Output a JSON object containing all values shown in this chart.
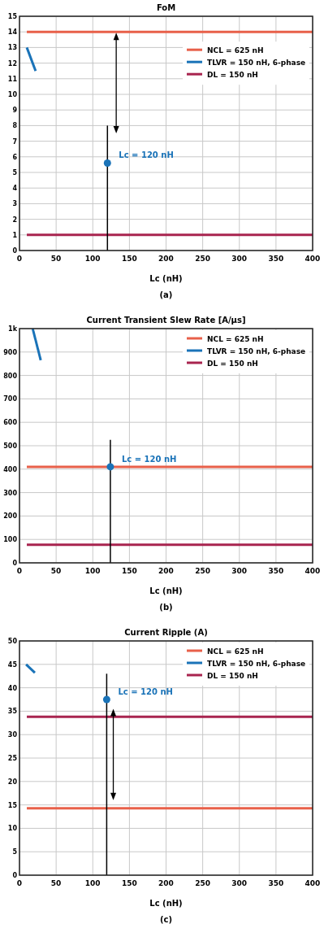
{
  "chart_data": [
    {
      "type": "line",
      "title": "FoM",
      "xlabel": "Lc (nH)",
      "xlim": [
        0,
        400
      ],
      "xticks": [
        0,
        50,
        100,
        150,
        200,
        250,
        300,
        350,
        400
      ],
      "ylim": [
        0,
        15
      ],
      "yticks": [
        0,
        1,
        2,
        3,
        4,
        5,
        6,
        7,
        8,
        9,
        10,
        11,
        12,
        13,
        14,
        15
      ],
      "grid": true,
      "legend": "top right",
      "series": [
        {
          "name": "NCL = 625 nH",
          "color": "#e8604a",
          "x": [
            10,
            400
          ],
          "values": [
            14,
            14
          ]
        },
        {
          "name": "TLVR = 150 nH, 6-phase",
          "color": "#1a73b8",
          "x": [
            10,
            22
          ],
          "values": [
            13,
            11.5
          ]
        },
        {
          "name": "DL = 150 nH",
          "color": "#a8244f",
          "x": [
            10,
            400
          ],
          "values": [
            1,
            1
          ]
        },
        {
          "type": "line",
          "color": "#000000",
          "x": [
            120,
            120
          ],
          "values": [
            0,
            8
          ]
        },
        {
          "type": "scatter",
          "color": "#1a73b8",
          "x": [
            120
          ],
          "values": [
            5.6
          ]
        }
      ],
      "annotations": [
        {
          "text": "Lc = 120 nH",
          "x": 120,
          "y": 5.6
        },
        "(a)"
      ]
    },
    {
      "type": "line",
      "title": "Current Transient Slew Rate [A/μs]",
      "xlabel": "Lc (nH)",
      "xlim": [
        0,
        400
      ],
      "xticks": [
        0,
        50,
        100,
        150,
        200,
        250,
        300,
        350,
        400
      ],
      "ylim": [
        0,
        1000
      ],
      "yticks": [
        0,
        100,
        200,
        300,
        400,
        500,
        600,
        700,
        800,
        900,
        {
          "value": 1000,
          "label": "1k"
        }
      ],
      "grid": true,
      "legend": "top right",
      "series": [
        {
          "name": "NCL = 625 nH",
          "color": "#e8604a",
          "x": [
            10,
            400
          ],
          "values": [
            410,
            410
          ]
        },
        {
          "name": "TLVR = 150 nH, 6-phase",
          "color": "#1a73b8",
          "x": [
            18,
            29
          ],
          "values": [
            1000,
            865
          ]
        },
        {
          "name": "DL = 150 nH",
          "color": "#a8244f",
          "x": [
            10,
            400
          ],
          "values": [
            77,
            77
          ]
        },
        {
          "type": "line",
          "color": "#000000",
          "x": [
            124,
            124
          ],
          "values": [
            0,
            525
          ]
        },
        {
          "type": "scatter",
          "color": "#1a73b8",
          "x": [
            124
          ],
          "values": [
            410
          ]
        }
      ],
      "annotations": [
        {
          "text": "Lc = 120 nH",
          "x": 124,
          "y": 410
        },
        "(b)"
      ]
    },
    {
      "type": "line",
      "title": "Current Ripple (A)",
      "xlabel": "Lc (nH)",
      "xlim": [
        0,
        400
      ],
      "xticks": [
        0,
        50,
        100,
        150,
        200,
        250,
        300,
        350,
        400
      ],
      "ylim": [
        0,
        50
      ],
      "yticks": [
        0,
        5,
        10,
        15,
        20,
        25,
        30,
        35,
        40,
        45,
        50
      ],
      "grid": true,
      "legend": "top right",
      "series": [
        {
          "name": "NCL = 625 nH",
          "color": "#e8604a",
          "x": [
            10,
            400
          ],
          "values": [
            14.3,
            14.3
          ]
        },
        {
          "name": "TLVR = 150 nH, 6-phase",
          "color": "#1a73b8",
          "x": [
            9,
            21
          ],
          "values": [
            45,
            43.2
          ]
        },
        {
          "name": "DL = 150 nH",
          "color": "#a8244f",
          "x": [
            10,
            400
          ],
          "values": [
            33.8,
            33.8
          ]
        },
        {
          "type": "line",
          "color": "#000000",
          "x": [
            119,
            119
          ],
          "values": [
            0,
            43
          ]
        },
        {
          "type": "scatter",
          "color": "#1a73b8",
          "x": [
            119
          ],
          "values": [
            37.5
          ]
        }
      ],
      "annotations": [
        {
          "text": "Lc = 120 nH",
          "x": 119,
          "y": 37.5
        },
        "(c)"
      ]
    }
  ]
}
